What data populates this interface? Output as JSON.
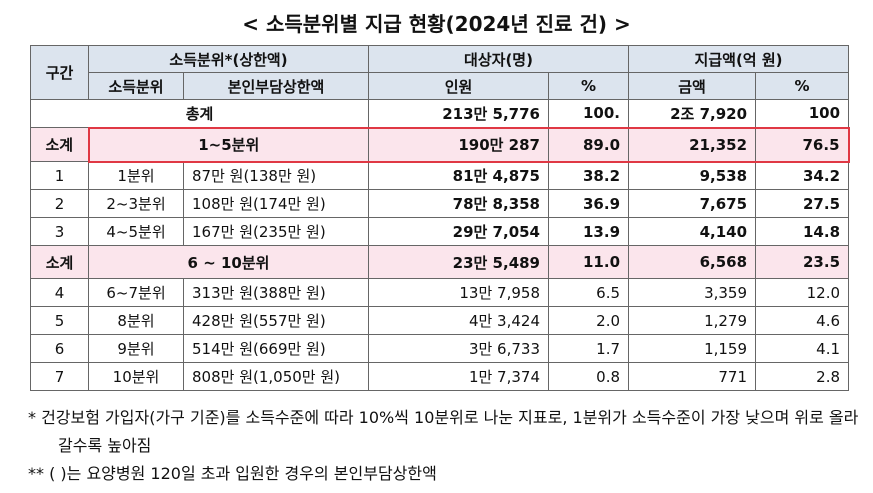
{
  "title": "< 소득분위별 지급 현황(2024년 진료 건) >",
  "table": {
    "header": [
      "구간",
      "소득분위*(상한액)",
      "대상자(명)",
      "지급액(억 원)"
    ],
    "subheader": [
      "소득분위",
      "본인부담상한액",
      "인원",
      "%",
      "금액",
      "%"
    ],
    "total": [
      "총계",
      "213만 5,776",
      "100.",
      "2조 7,920",
      "100"
    ],
    "rows": [
      [
        "소계",
        "1~5분위",
        "190만 287",
        "89.0",
        "21,352",
        "76.5"
      ],
      [
        "1",
        "1분위",
        "87만 원(138만 원)",
        "81만 4,875",
        "38.2",
        "9,538",
        "34.2"
      ],
      [
        "2",
        "2~3분위",
        "108만 원(174만 원)",
        "78만 8,358",
        "36.9",
        "7,675",
        "27.5"
      ],
      [
        "3",
        "4~5분위",
        "167만 원(235만 원)",
        "29만 7,054",
        "13.9",
        "4,140",
        "14.8"
      ],
      [
        "소계",
        "6 ~ 10분위",
        "23만 5,489",
        "11.0",
        "6,568",
        "23.5"
      ],
      [
        "4",
        "6~7분위",
        "313만 원(388만 원)",
        "13만 7,958",
        "6.5",
        "3,359",
        "12.0"
      ],
      [
        "5",
        "8분위",
        "428만 원(557만 원)",
        "4만 3,424",
        "2.0",
        "1,279",
        "4.6"
      ],
      [
        "6",
        "9분위",
        "514만 원(669만 원)",
        "3만 6,733",
        "1.7",
        "1,159",
        "4.1"
      ],
      [
        "7",
        "10분위",
        "808만 원(1,050만 원)",
        "1만 7,374",
        "0.8",
        "771",
        "2.8"
      ]
    ]
  },
  "notes": [
    "* 건강보험 가입자(가구 기준)를 소득수준에 따라 10%씩 10분위로 나눈 지표로, 1분위가 소득수준이 가장 낮으며 위로 올라갈수록 높아짐",
    "** ( )는 요양병원 120일 초과 입원한 경우의 본인부담상한액"
  ]
}
